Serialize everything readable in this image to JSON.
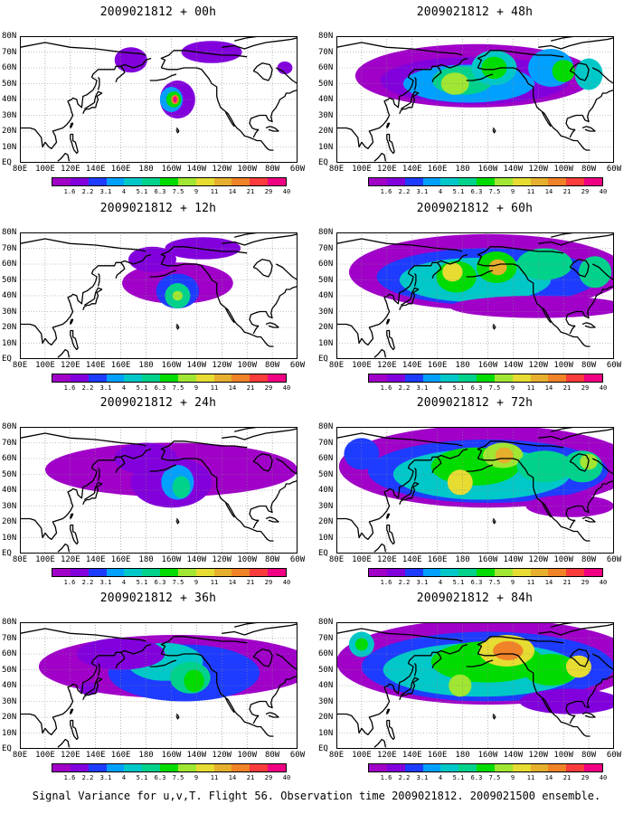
{
  "caption": "Signal Variance for u,v,T. Flight 56. Observation time 2009021812. 2009021500 ensemble.",
  "lat_labels": [
    "80N",
    "70N",
    "60N",
    "50N",
    "40N",
    "30N",
    "20N",
    "10N",
    "EQ"
  ],
  "lon_labels": [
    "80E",
    "100E",
    "120E",
    "140E",
    "160E",
    "180",
    "160W",
    "140W",
    "120W",
    "100W",
    "80W",
    "60W"
  ],
  "colorbar": {
    "levels": [
      "1.6",
      "2.2",
      "3.1",
      "4",
      "5.1",
      "6.3",
      "7.5",
      "9",
      "11",
      "14",
      "21",
      "29",
      "40"
    ],
    "colors": [
      "#a000c8",
      "#8200dc",
      "#1e3cff",
      "#00a0ff",
      "#00c8c8",
      "#00d28c",
      "#00dc00",
      "#a0e632",
      "#e6dc32",
      "#e6af2d",
      "#f08228",
      "#fa3c3c",
      "#f00082"
    ]
  },
  "map_colors": {
    "ocean": "#ffffff",
    "coast": "#000000",
    "grid": "#888888"
  },
  "panels": [
    {
      "title": "2009021812 + 00h"
    },
    {
      "title": "2009021812 + 48h"
    },
    {
      "title": "2009021812 + 12h"
    },
    {
      "title": "2009021812 + 60h"
    },
    {
      "title": "2009021812 + 24h"
    },
    {
      "title": "2009021812 + 72h"
    },
    {
      "title": "2009021812 + 36h"
    },
    {
      "title": "2009021812 + 84h"
    }
  ]
}
